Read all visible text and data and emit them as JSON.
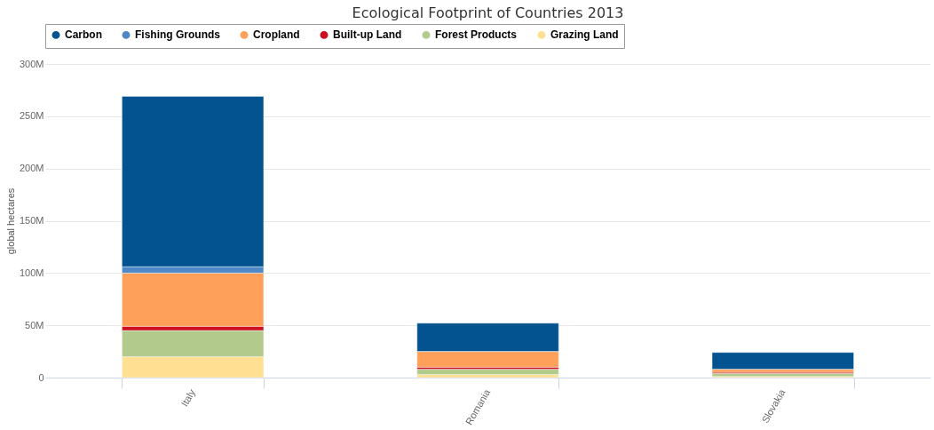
{
  "chart_data": {
    "type": "bar",
    "title": "Ecological Footprint of Countries 2013",
    "ylabel": "global hectares",
    "stacked": true,
    "categories": [
      "Italy",
      "Romania",
      "Slovakia"
    ],
    "series": [
      {
        "name": "Grazing Land",
        "color": "#ffe093",
        "values": [
          20,
          3,
          1
        ]
      },
      {
        "name": "Forest Products",
        "color": "#b2cb8c",
        "values": [
          25,
          5,
          3
        ]
      },
      {
        "name": "Built-up Land",
        "color": "#cc1020",
        "values": [
          4,
          2,
          1
        ]
      },
      {
        "name": "Cropland",
        "color": "#ffa05a",
        "values": [
          51,
          15,
          3
        ]
      },
      {
        "name": "Fishing Grounds",
        "color": "#4f88c6",
        "values": [
          6,
          0,
          0
        ]
      },
      {
        "name": "Carbon",
        "color": "#02538f",
        "values": [
          163,
          27,
          16
        ]
      }
    ],
    "ylim": [
      0,
      300
    ],
    "yticks": [
      {
        "value": 0,
        "label": "0"
      },
      {
        "value": 50,
        "label": "50M"
      },
      {
        "value": 100,
        "label": "100M"
      },
      {
        "value": 150,
        "label": "150M"
      },
      {
        "value": 200,
        "label": "200M"
      },
      {
        "value": 250,
        "label": "250M"
      },
      {
        "value": 300,
        "label": "300M"
      }
    ],
    "grid": "y",
    "legend": "top"
  }
}
